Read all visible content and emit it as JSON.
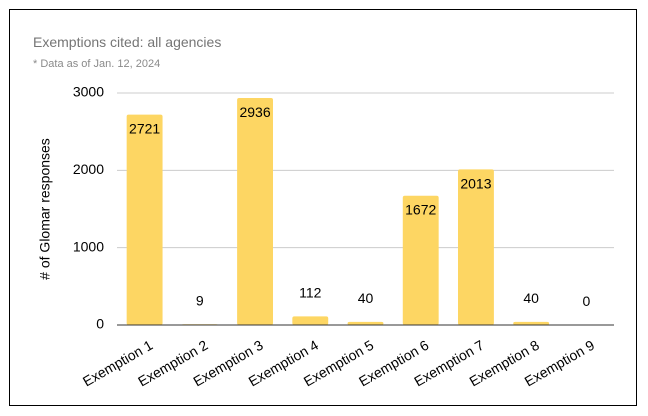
{
  "chart_data": {
    "type": "bar",
    "title": "Exemptions cited: all agencies",
    "subtitle": "* Data as of Jan. 12, 2024",
    "ylabel": "# of Glomar responses",
    "xlabel": "",
    "ylim": [
      0,
      3000
    ],
    "yticks": [
      0,
      1000,
      2000,
      3000
    ],
    "categories": [
      "Exemption 1",
      "Exemption 2",
      "Exemption 3",
      "Exemption 4",
      "Exemption 5",
      "Exemption 6",
      "Exemption 7",
      "Exemption 8",
      "Exemption 9"
    ],
    "values": [
      2721,
      9,
      2936,
      112,
      40,
      1672,
      2013,
      40,
      0
    ],
    "bar_color": "#fdd663",
    "grid": true,
    "legend": "none"
  }
}
